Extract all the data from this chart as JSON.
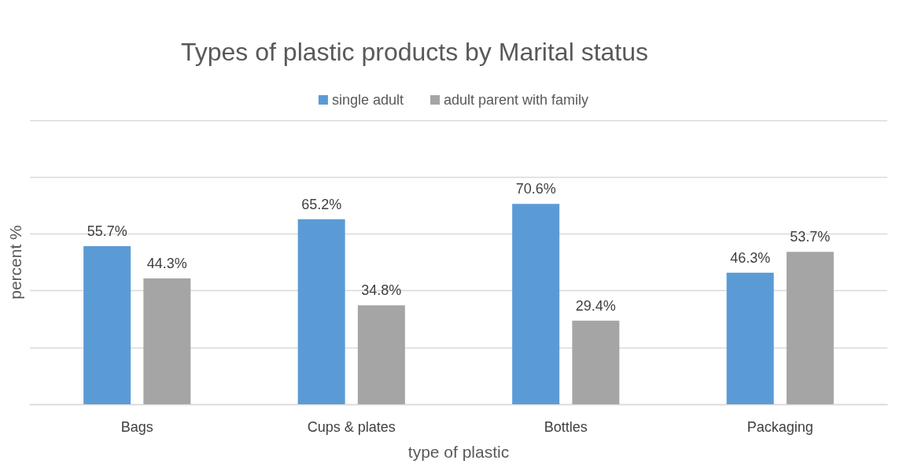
{
  "chart_data": {
    "type": "bar",
    "title": "Types of plastic products by Marital status",
    "xlabel": "type of plastic",
    "ylabel": "percent %",
    "categories": [
      "Bags",
      "Cups & plates",
      "Bottles",
      "Packaging"
    ],
    "series": [
      {
        "name": "single adult",
        "color": "#5b9bd5",
        "values": [
          55.7,
          65.2,
          70.6,
          46.3
        ],
        "value_labels": [
          "55.7%",
          "65.2%",
          "70.6%",
          "46.3%"
        ]
      },
      {
        "name": "adult parent with family",
        "color": "#a5a5a5",
        "values": [
          44.3,
          34.8,
          29.4,
          53.7
        ],
        "value_labels": [
          "44.3%",
          "34.8%",
          "29.4%",
          "53.7%"
        ]
      }
    ],
    "ylim": [
      0,
      100
    ],
    "yticks": [
      {
        "value": 0,
        "label": null
      },
      {
        "value": 20,
        "label": null
      },
      {
        "value": 40,
        "label": null
      },
      {
        "value": 60,
        "label": null
      },
      {
        "value": 80,
        "label": null
      },
      {
        "value": 100,
        "label": null
      }
    ],
    "tick_labels": "x",
    "grid": "y",
    "legend": "top"
  }
}
